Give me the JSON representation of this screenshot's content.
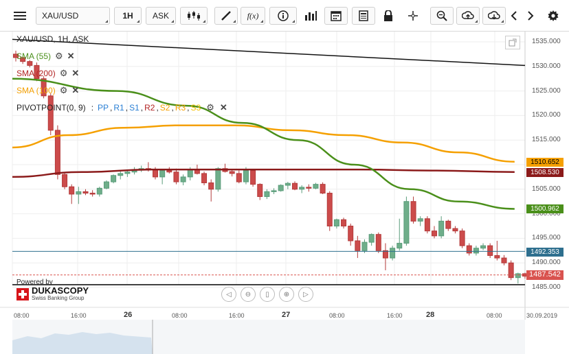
{
  "toolbar": {
    "menu_icon": "hamburger-menu-icon",
    "symbol": "XAU/USD",
    "timeframe": "1H",
    "price_side": "ASK",
    "tools": [
      "candle-type-icon",
      "draw-line-icon",
      "function-icon",
      "info-icon",
      "volume-bars-icon",
      "calendar-icon",
      "report-icon",
      "lock-icon",
      "crosshair-icon",
      "zoom-icon",
      "upload-icon",
      "download-icon",
      "prev-arrow-icon",
      "next-arrow-icon",
      "settings-icon"
    ],
    "fx_label": "f(x)"
  },
  "chart_header": {
    "title": "XAU/USD, 1H, ASK"
  },
  "indicators": {
    "sma55": {
      "label": "SMA (55)",
      "color": "#4a8f1a"
    },
    "sma200": {
      "label": "SMA (200)",
      "color": "#b22222"
    },
    "sma100": {
      "label": "SMA (100)",
      "color": "#f5a000"
    },
    "pivot": {
      "label": "PIVOTPOINT(0, 9)",
      "sep": ":",
      "parts": [
        {
          "text": "PP",
          "color": "#2a7fd4"
        },
        {
          "text": "R1",
          "color": "#2a7fd4"
        },
        {
          "text": "S1",
          "color": "#2a7fd4"
        },
        {
          "text": "R2",
          "color": "#b22222"
        },
        {
          "text": "S2",
          "color": "#f5a000"
        },
        {
          "text": "R3",
          "color": "#f5a000"
        },
        {
          "text": "S3",
          "color": "#f5c000"
        }
      ]
    }
  },
  "branding": {
    "powered_by": "Powered by",
    "name": "DUKASCOPY",
    "subtitle": "Swiss Banking Group"
  },
  "price_axis": {
    "ticks": [
      "1535.000",
      "1530.000",
      "1525.000",
      "1520.000",
      "1515.000",
      "1510.000",
      "1505.000",
      "1500.000",
      "1495.000",
      "1490.000",
      "1485.000"
    ]
  },
  "price_tags": {
    "sma100": {
      "value": "1510.652",
      "bg": "#f5a000",
      "fg": "#000"
    },
    "sma200": {
      "value": "1508.530",
      "bg": "#8b1a1a",
      "fg": "#fff"
    },
    "sma55": {
      "value": "1500.962",
      "bg": "#4a8f1a",
      "fg": "#fff"
    },
    "hline": {
      "value": "1492.353",
      "bg": "#2e6f8e",
      "fg": "#fff"
    },
    "last": {
      "value": "1487.542",
      "bg": "#d9534f",
      "fg": "#fff"
    }
  },
  "time_axis": {
    "ticks": [
      {
        "text": "08:00",
        "day": false
      },
      {
        "text": "16:00",
        "day": false
      },
      {
        "text": "26",
        "day": true
      },
      {
        "text": "08:00",
        "day": false
      },
      {
        "text": "16:00",
        "day": false
      },
      {
        "text": "27",
        "day": true
      },
      {
        "text": "08:00",
        "day": false
      },
      {
        "text": "16:00",
        "day": false
      },
      {
        "text": "28",
        "day": true
      },
      {
        "text": "08:00",
        "day": false
      },
      {
        "text": "30.09.2019",
        "day": false
      }
    ]
  },
  "nav_controls": [
    "scroll-left-icon",
    "zoom-out-icon",
    "fit-icon",
    "zoom-in-icon",
    "scroll-right-icon"
  ],
  "candles": [
    [
      1532.5,
      1533.2,
      1531.0,
      1531.8
    ],
    [
      1531.8,
      1532.0,
      1530.5,
      1531.0
    ],
    [
      1531.0,
      1531.3,
      1529.8,
      1530.2
    ],
    [
      1530.2,
      1530.8,
      1527.0,
      1527.5
    ],
    [
      1527.5,
      1528.0,
      1523.5,
      1524.0
    ],
    [
      1524.0,
      1524.5,
      1516.0,
      1517.0
    ],
    [
      1517.0,
      1518.0,
      1507.0,
      1508.0
    ],
    [
      1508.0,
      1508.5,
      1505.0,
      1505.5
    ],
    [
      1505.5,
      1506.0,
      1502.0,
      1504.0
    ],
    [
      1504.0,
      1505.5,
      1502.0,
      1504.5
    ],
    [
      1504.5,
      1505.0,
      1503.8,
      1504.2
    ],
    [
      1504.2,
      1504.8,
      1503.5,
      1504.0
    ],
    [
      1504.0,
      1505.5,
      1503.5,
      1505.2
    ],
    [
      1505.2,
      1506.8,
      1505.0,
      1506.5
    ],
    [
      1506.5,
      1508.0,
      1506.2,
      1507.8
    ],
    [
      1507.8,
      1508.8,
      1507.0,
      1508.2
    ],
    [
      1508.2,
      1509.0,
      1507.5,
      1508.5
    ],
    [
      1508.5,
      1509.5,
      1508.0,
      1509.0
    ],
    [
      1509.0,
      1509.8,
      1508.5,
      1509.2
    ],
    [
      1509.2,
      1510.5,
      1508.6,
      1509.0
    ],
    [
      1509.0,
      1509.5,
      1507.0,
      1507.5
    ],
    [
      1507.5,
      1509.0,
      1506.0,
      1508.8
    ],
    [
      1508.8,
      1509.5,
      1508.2,
      1508.5
    ],
    [
      1508.5,
      1509.2,
      1506.0,
      1506.5
    ],
    [
      1506.5,
      1508.0,
      1505.8,
      1507.5
    ],
    [
      1507.5,
      1509.5,
      1506.8,
      1509.0
    ],
    [
      1509.0,
      1510.0,
      1508.0,
      1508.2
    ],
    [
      1508.2,
      1508.6,
      1505.8,
      1506.3
    ],
    [
      1506.3,
      1507.0,
      1502.5,
      1505.0
    ],
    [
      1505.0,
      1509.5,
      1504.5,
      1509.2
    ],
    [
      1509.2,
      1510.2,
      1508.4,
      1508.6
    ],
    [
      1508.6,
      1509.0,
      1507.6,
      1508.2
    ],
    [
      1508.2,
      1508.8,
      1506.2,
      1506.5
    ],
    [
      1506.5,
      1509.5,
      1506.0,
      1508.8
    ],
    [
      1508.8,
      1508.9,
      1505.5,
      1506.0
    ],
    [
      1506.0,
      1506.2,
      1502.8,
      1503.5
    ],
    [
      1503.5,
      1505.0,
      1503.0,
      1504.5
    ],
    [
      1504.5,
      1505.2,
      1504.0,
      1504.7
    ],
    [
      1504.7,
      1506.0,
      1504.5,
      1505.8
    ],
    [
      1505.8,
      1506.5,
      1505.0,
      1506.2
    ],
    [
      1506.2,
      1506.6,
      1504.8,
      1505.0
    ],
    [
      1505.0,
      1505.8,
      1504.2,
      1505.4
    ],
    [
      1505.4,
      1506.0,
      1504.5,
      1505.2
    ],
    [
      1505.2,
      1506.3,
      1505.0,
      1506.0
    ],
    [
      1506.0,
      1506.4,
      1504.0,
      1504.2
    ],
    [
      1504.2,
      1504.6,
      1496.5,
      1497.5
    ],
    [
      1497.5,
      1499.0,
      1497.0,
      1498.8
    ],
    [
      1498.8,
      1499.2,
      1497.0,
      1497.5
    ],
    [
      1497.5,
      1498.0,
      1493.5,
      1494.5
    ],
    [
      1494.5,
      1495.5,
      1491.0,
      1492.5
    ],
    [
      1492.5,
      1494.8,
      1492.0,
      1494.2
    ],
    [
      1494.2,
      1496.0,
      1493.5,
      1495.8
    ],
    [
      1495.8,
      1496.2,
      1492.0,
      1492.5
    ],
    [
      1492.5,
      1494.0,
      1488.5,
      1491.0
    ],
    [
      1491.0,
      1493.5,
      1490.5,
      1493.0
    ],
    [
      1493.0,
      1499.0,
      1492.5,
      1494.0
    ],
    [
      1494.0,
      1503.5,
      1493.5,
      1502.5
    ],
    [
      1502.5,
      1503.5,
      1498.0,
      1498.5
    ],
    [
      1498.5,
      1499.5,
      1497.5,
      1499.0
    ],
    [
      1499.0,
      1499.5,
      1496.0,
      1496.5
    ],
    [
      1496.5,
      1497.5,
      1495.0,
      1495.5
    ],
    [
      1495.5,
      1499.5,
      1495.0,
      1498.5
    ],
    [
      1498.5,
      1498.8,
      1496.5,
      1497.0
    ],
    [
      1497.0,
      1497.5,
      1496.0,
      1496.5
    ],
    [
      1496.5,
      1497.0,
      1493.0,
      1493.5
    ],
    [
      1493.5,
      1494.0,
      1491.5,
      1492.0
    ],
    [
      1492.0,
      1493.5,
      1491.5,
      1493.0
    ],
    [
      1493.0,
      1494.0,
      1492.6,
      1493.5
    ],
    [
      1493.5,
      1494.0,
      1491.0,
      1491.5
    ],
    [
      1491.5,
      1494.5,
      1490.5,
      1491.0
    ],
    [
      1491.0,
      1491.6,
      1489.5,
      1490.0
    ],
    [
      1490.0,
      1490.5,
      1486.5,
      1487.0
    ],
    [
      1487.0,
      1488.0,
      1485.8,
      1487.8
    ],
    [
      1487.8,
      1488.0,
      1486.8,
      1487.3
    ]
  ],
  "sma55_points": [
    [
      1527.5,
      0
    ],
    [
      1525,
      15
    ],
    [
      1522,
      25
    ],
    [
      1518.5,
      33
    ],
    [
      1515,
      41
    ],
    [
      1510,
      49
    ],
    [
      1505,
      57
    ],
    [
      1502.5,
      64
    ],
    [
      1501,
      72
    ]
  ],
  "sma100_points": [
    [
      1513.5,
      0
    ],
    [
      1516,
      8
    ],
    [
      1517.5,
      16
    ],
    [
      1518,
      24
    ],
    [
      1518,
      32
    ],
    [
      1517,
      40
    ],
    [
      1516,
      48
    ],
    [
      1514.5,
      56
    ],
    [
      1512.5,
      64
    ],
    [
      1510.6,
      72
    ]
  ],
  "sma200_points": [
    [
      1507.5,
      0
    ],
    [
      1508.5,
      10
    ],
    [
      1509,
      20
    ],
    [
      1509,
      30
    ],
    [
      1509,
      40
    ],
    [
      1509,
      50
    ],
    [
      1508.8,
      60
    ],
    [
      1508.5,
      72
    ]
  ],
  "trendline": {
    "from": 1535.5,
    "to": 1530.2
  },
  "hline_value": 1492.353,
  "last_value": 1487.542,
  "colors": {
    "up": "#5a9c7a",
    "up_fill": "#6fae8a",
    "down": "#b33a3a",
    "down_fill": "#cc4b4b",
    "grid": "#eeeeee",
    "axis": "#000000",
    "hline": "#2e6f8e"
  }
}
